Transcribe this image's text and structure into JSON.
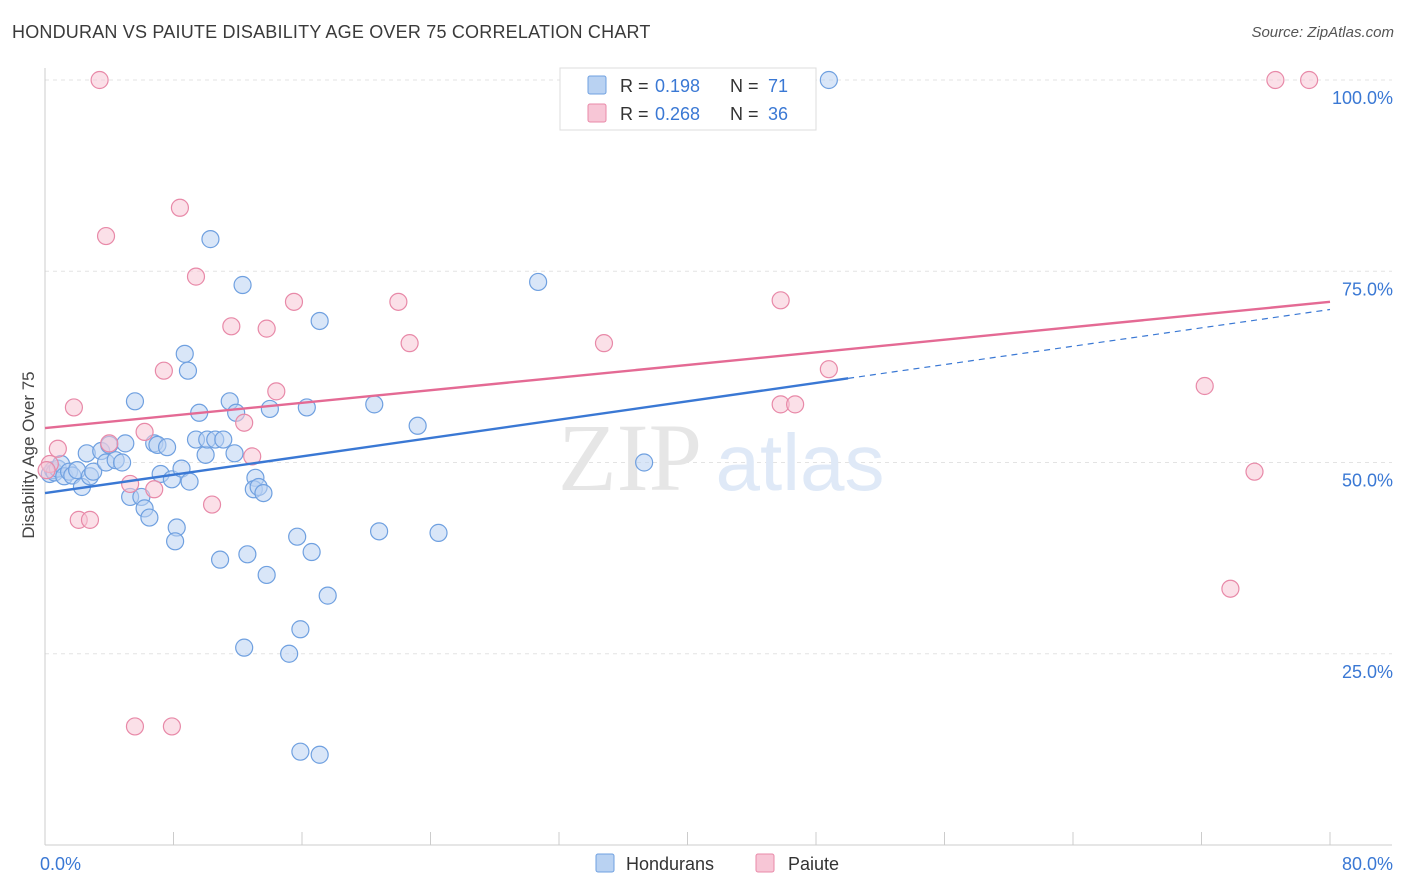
{
  "header": {
    "title": "HONDURAN VS PAIUTE DISABILITY AGE OVER 75 CORRELATION CHART",
    "source": "Source: ZipAtlas.com"
  },
  "watermark": {
    "zip": "ZIP",
    "atlas": "atlas"
  },
  "legend_stats": [
    {
      "r_label": "R =",
      "r_value": "0.198",
      "n_label": "N =",
      "n_value": "71",
      "color": "#6fa0e0",
      "fill": "#b9d2f2"
    },
    {
      "r_label": "R =",
      "r_value": "0.268",
      "n_label": "N =",
      "n_value": "36",
      "color": "#e889a8",
      "fill": "#f7c6d6"
    }
  ],
  "chart_data": {
    "type": "scatter",
    "title": "HONDURAN VS PAIUTE DISABILITY AGE OVER 75 CORRELATION CHART",
    "xlabel": "",
    "ylabel": "Disability Age Over 75",
    "xlim": [
      0,
      80
    ],
    "ylim": [
      0,
      102
    ],
    "x_tick_labels": [
      {
        "value": 0,
        "label": "0.0%"
      },
      {
        "value": 80,
        "label": "80.0%"
      }
    ],
    "y_tick_labels": [
      {
        "value": 25,
        "label": "25.0%"
      },
      {
        "value": 50,
        "label": "50.0%"
      },
      {
        "value": 75,
        "label": "75.0%"
      },
      {
        "value": 100,
        "label": "100.0%"
      }
    ],
    "grid": true,
    "legend_position": "bottom-center",
    "series": [
      {
        "name": "Hondurans",
        "color": "#3a78d4",
        "fill": "#b9d2f2",
        "stroke": "#6fa0e0",
        "trend": {
          "x": [
            0,
            50
          ],
          "y": [
            46,
            61
          ],
          "dashed_to": [
            80,
            70
          ]
        },
        "points": [
          [
            0.3,
            48.5
          ],
          [
            0.5,
            49.0
          ],
          [
            0.6,
            48.7
          ],
          [
            0.8,
            49.2
          ],
          [
            1.0,
            49.8
          ],
          [
            1.2,
            48.2
          ],
          [
            1.5,
            48.8
          ],
          [
            1.7,
            48.3
          ],
          [
            2.0,
            49.0
          ],
          [
            2.3,
            46.8
          ],
          [
            2.8,
            48.2
          ],
          [
            3.0,
            48.8
          ],
          [
            2.6,
            51.2
          ],
          [
            3.5,
            51.5
          ],
          [
            3.8,
            50.0
          ],
          [
            4.0,
            52.3
          ],
          [
            4.4,
            50.3
          ],
          [
            4.8,
            50.0
          ],
          [
            5.0,
            52.5
          ],
          [
            5.3,
            45.5
          ],
          [
            6.0,
            45.5
          ],
          [
            5.6,
            58.0
          ],
          [
            6.2,
            44.0
          ],
          [
            6.5,
            42.8
          ],
          [
            6.8,
            52.5
          ],
          [
            7.0,
            52.3
          ],
          [
            7.2,
            48.5
          ],
          [
            7.6,
            52.0
          ],
          [
            7.9,
            47.8
          ],
          [
            8.2,
            41.5
          ],
          [
            8.1,
            39.7
          ],
          [
            8.5,
            49.2
          ],
          [
            8.7,
            64.2
          ],
          [
            8.9,
            62.0
          ],
          [
            9.0,
            47.5
          ],
          [
            9.4,
            53.0
          ],
          [
            9.6,
            56.5
          ],
          [
            10.0,
            51.0
          ],
          [
            10.1,
            53.0
          ],
          [
            10.3,
            79.2
          ],
          [
            10.6,
            53.0
          ],
          [
            11.1,
            53.0
          ],
          [
            10.9,
            37.3
          ],
          [
            11.5,
            58.0
          ],
          [
            11.8,
            51.2
          ],
          [
            11.9,
            56.5
          ],
          [
            12.3,
            73.2
          ],
          [
            12.4,
            25.8
          ],
          [
            12.6,
            38.0
          ],
          [
            13.1,
            48.0
          ],
          [
            13.0,
            46.5
          ],
          [
            13.3,
            46.8
          ],
          [
            13.6,
            46.0
          ],
          [
            13.8,
            35.3
          ],
          [
            14.0,
            57.0
          ],
          [
            15.2,
            25.0
          ],
          [
            15.7,
            40.3
          ],
          [
            15.9,
            28.2
          ],
          [
            15.9,
            12.2
          ],
          [
            16.3,
            57.2
          ],
          [
            16.6,
            38.3
          ],
          [
            17.1,
            68.5
          ],
          [
            17.1,
            11.8
          ],
          [
            17.6,
            32.6
          ],
          [
            20.5,
            57.6
          ],
          [
            20.8,
            41.0
          ],
          [
            23.2,
            54.8
          ],
          [
            24.5,
            40.8
          ],
          [
            30.7,
            73.6
          ],
          [
            37.3,
            50.0
          ],
          [
            48.8,
            100.0
          ]
        ]
      },
      {
        "name": "Paiute",
        "color": "#e46a94",
        "fill": "#f7c6d6",
        "stroke": "#e889a8",
        "trend": {
          "x": [
            0,
            80
          ],
          "y": [
            54.5,
            71
          ]
        },
        "points": [
          [
            0.3,
            49.8
          ],
          [
            0.8,
            51.8
          ],
          [
            1.8,
            57.2
          ],
          [
            2.1,
            42.5
          ],
          [
            2.8,
            42.5
          ],
          [
            3.4,
            100.0
          ],
          [
            3.8,
            79.6
          ],
          [
            4.0,
            52.5
          ],
          [
            5.3,
            47.2
          ],
          [
            5.6,
            15.5
          ],
          [
            6.2,
            54.0
          ],
          [
            6.8,
            46.5
          ],
          [
            7.4,
            62.0
          ],
          [
            7.9,
            15.5
          ],
          [
            8.4,
            83.3
          ],
          [
            9.4,
            74.3
          ],
          [
            10.4,
            44.5
          ],
          [
            11.6,
            67.8
          ],
          [
            12.4,
            55.2
          ],
          [
            12.9,
            50.8
          ],
          [
            13.8,
            67.5
          ],
          [
            14.4,
            59.3
          ],
          [
            15.5,
            71.0
          ],
          [
            22.0,
            71.0
          ],
          [
            22.7,
            65.6
          ],
          [
            34.8,
            65.6
          ],
          [
            45.8,
            71.2
          ],
          [
            45.8,
            57.6
          ],
          [
            46.7,
            57.6
          ],
          [
            48.8,
            62.2
          ],
          [
            72.2,
            60.0
          ],
          [
            75.3,
            48.8
          ],
          [
            73.8,
            33.5
          ],
          [
            76.6,
            100.0
          ],
          [
            78.7,
            100.0
          ],
          [
            0.1,
            49.0
          ]
        ]
      }
    ]
  }
}
